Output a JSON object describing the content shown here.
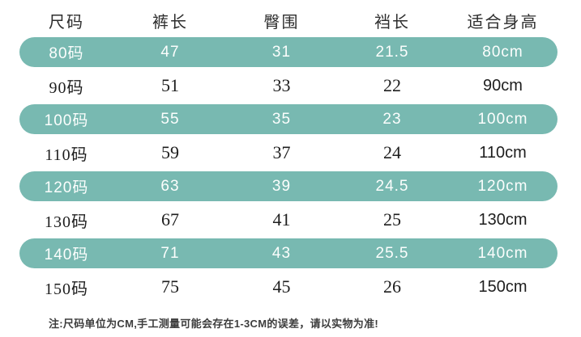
{
  "styles": {
    "accent_color": "#78b9b1",
    "highlight_text_color": "#fcfefd",
    "plain_text_color": "#1e1e1e",
    "header_text_color": "#2d2d2d",
    "background_color": "#ffffff"
  },
  "chart_data": {
    "type": "table",
    "columns": [
      "尺码",
      "裤长",
      "臀围",
      "裆长",
      "适合身高"
    ],
    "rows": [
      [
        "80码",
        47,
        31,
        21.5,
        "80cm"
      ],
      [
        "90码",
        51,
        33,
        22,
        "90cm"
      ],
      [
        "100码",
        55,
        35,
        23,
        "100cm"
      ],
      [
        "110码",
        59,
        37,
        24,
        "110cm"
      ],
      [
        "120码",
        63,
        39,
        24.5,
        "120cm"
      ],
      [
        "130码",
        67,
        41,
        25,
        "130cm"
      ],
      [
        "140码",
        71,
        43,
        25.5,
        "140cm"
      ],
      [
        "150码",
        75,
        45,
        26,
        "150cm"
      ]
    ],
    "highlighted_row_indices": [
      0,
      2,
      4,
      6
    ],
    "layout": {
      "grid": "off",
      "highlight_style": "teal pill rows alternating"
    }
  },
  "note": {
    "text": "注:尺码单位为CM,手工测量可能会存在1-3CM的误差，请以实物为准!"
  }
}
